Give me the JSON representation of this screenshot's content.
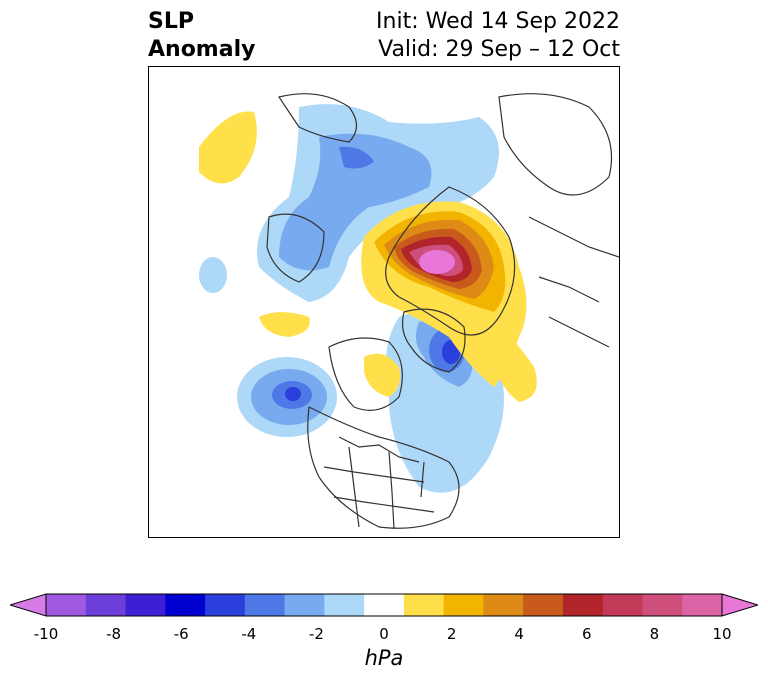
{
  "title": {
    "left_line1": "SLP",
    "left_line2": "Anomaly",
    "right_line1": "Init: Wed 14 Sep 2022",
    "right_line2": "Valid: 29 Sep – 12 Oct"
  },
  "colorbar": {
    "units": "hPa",
    "tick_labels": [
      "-10",
      "-8",
      "-6",
      "-4",
      "-2",
      "0",
      "2",
      "4",
      "6",
      "8",
      "10"
    ],
    "colors": [
      "#d77be7",
      "#a05ae2",
      "#6c3fd9",
      "#3d20d6",
      "#0000d0",
      "#2a3fdb",
      "#4e78e5",
      "#78aaef",
      "#aed8f8",
      "#ffffff",
      "#ffe04a",
      "#f2b400",
      "#de8a17",
      "#c85a1b",
      "#b0242a",
      "#c23a58",
      "#cf4f7c",
      "#da64a6",
      "#e877d7"
    ]
  },
  "map_data": {
    "projection": "north polar stereographic",
    "features": [
      {
        "name": "positive-anomaly-eurasia",
        "peak_hpa": 10
      },
      {
        "name": "negative-anomaly-north-atlantic",
        "peak_hpa": -6
      },
      {
        "name": "negative-anomaly-north-pacific",
        "peak_hpa": -6
      },
      {
        "name": "negative-anomaly-central-asia",
        "peak_hpa": -3
      }
    ]
  }
}
